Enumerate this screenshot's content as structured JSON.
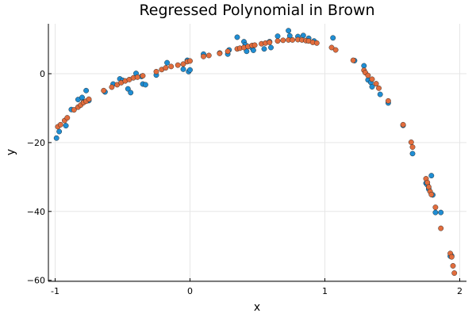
{
  "chart_data": {
    "type": "scatter",
    "title": "Regressed Polynomial in Brown",
    "xlabel": "x",
    "ylabel": "y",
    "xlim": [
      -1.05,
      2.05
    ],
    "ylim": [
      -60.3,
      14.5
    ],
    "xticks": [
      -1,
      0,
      1,
      2
    ],
    "yticks": [
      -60,
      -40,
      -20,
      0
    ],
    "grid": true,
    "legend": "none",
    "colors": {
      "observed": "#1f8ed4",
      "fitted": "#e26d3d"
    },
    "series": [
      {
        "points": [
          [
            -0.99,
            -18.7
          ],
          [
            -0.97,
            -16.8
          ],
          [
            -0.92,
            -15.1
          ],
          [
            -0.88,
            -10.4
          ],
          [
            -0.83,
            -7.5
          ],
          [
            -0.8,
            -6.9
          ],
          [
            -0.79,
            -8.2
          ],
          [
            -0.77,
            -4.9
          ],
          [
            -0.75,
            -7.8
          ],
          [
            -0.63,
            -5.3
          ],
          [
            -0.57,
            -3.0
          ],
          [
            -0.52,
            -1.5
          ],
          [
            -0.5,
            -1.9
          ],
          [
            -0.46,
            -4.4
          ],
          [
            -0.44,
            -5.5
          ],
          [
            -0.4,
            0.1
          ],
          [
            -0.36,
            -0.8
          ],
          [
            -0.35,
            -3.0
          ],
          [
            -0.33,
            -3.2
          ],
          [
            -0.25,
            -0.4
          ],
          [
            -0.17,
            3.2
          ],
          [
            -0.05,
            1.3
          ],
          [
            -0.01,
            0.6
          ],
          [
            -0.02,
            3.9
          ],
          [
            0.0,
            1.1
          ],
          [
            0.1,
            5.7
          ],
          [
            0.22,
            6.0
          ],
          [
            0.28,
            5.7
          ],
          [
            0.29,
            6.9
          ],
          [
            0.35,
            10.6
          ],
          [
            0.4,
            9.3
          ],
          [
            0.41,
            8.4
          ],
          [
            0.42,
            6.5
          ],
          [
            0.46,
            7.5
          ],
          [
            0.47,
            6.8
          ],
          [
            0.55,
            7.2
          ],
          [
            0.59,
            9.3
          ],
          [
            0.6,
            7.6
          ],
          [
            0.65,
            10.9
          ],
          [
            0.73,
            12.5
          ],
          [
            0.74,
            11.0
          ],
          [
            0.8,
            10.8
          ],
          [
            0.84,
            11.1
          ],
          [
            0.88,
            10.3
          ],
          [
            0.92,
            9.5
          ],
          [
            1.06,
            10.4
          ],
          [
            1.22,
            3.8
          ],
          [
            1.29,
            2.3
          ],
          [
            1.32,
            -1.8
          ],
          [
            1.34,
            -2.5
          ],
          [
            1.35,
            -3.8
          ],
          [
            1.41,
            -6.0
          ],
          [
            1.47,
            -8.5
          ],
          [
            1.58,
            -15.0
          ],
          [
            1.65,
            -23.2
          ],
          [
            1.75,
            -31.8
          ],
          [
            1.76,
            -32.3
          ],
          [
            1.77,
            -33.5
          ],
          [
            1.79,
            -29.6
          ],
          [
            1.8,
            -35.2
          ],
          [
            1.82,
            -40.3
          ],
          [
            1.86,
            -40.3
          ],
          [
            1.93,
            -53.0
          ],
          [
            1.94,
            -52.9
          ]
        ]
      },
      {
        "points": [
          [
            -0.98,
            -15.4
          ],
          [
            -0.96,
            -14.8
          ],
          [
            -0.93,
            -13.6
          ],
          [
            -0.91,
            -12.8
          ],
          [
            -0.86,
            -10.5
          ],
          [
            -0.83,
            -9.7
          ],
          [
            -0.81,
            -9.1
          ],
          [
            -0.79,
            -8.4
          ],
          [
            -0.77,
            -8.0
          ],
          [
            -0.75,
            -7.4
          ],
          [
            -0.64,
            -4.9
          ],
          [
            -0.58,
            -3.9
          ],
          [
            -0.54,
            -3.2
          ],
          [
            -0.51,
            -2.6
          ],
          [
            -0.48,
            -2.1
          ],
          [
            -0.45,
            -1.7
          ],
          [
            -0.42,
            -1.2
          ],
          [
            -0.39,
            -1.0
          ],
          [
            -0.35,
            -0.6
          ],
          [
            -0.25,
            0.6
          ],
          [
            -0.21,
            1.2
          ],
          [
            -0.18,
            1.7
          ],
          [
            -0.14,
            2.1
          ],
          [
            -0.09,
            2.5
          ],
          [
            -0.05,
            2.8
          ],
          [
            -0.02,
            3.5
          ],
          [
            0.0,
            3.7
          ],
          [
            0.1,
            5.0
          ],
          [
            0.14,
            5.3
          ],
          [
            0.22,
            5.9
          ],
          [
            0.28,
            6.5
          ],
          [
            0.35,
            7.2
          ],
          [
            0.37,
            7.4
          ],
          [
            0.4,
            7.6
          ],
          [
            0.43,
            7.9
          ],
          [
            0.46,
            8.2
          ],
          [
            0.48,
            8.3
          ],
          [
            0.53,
            8.7
          ],
          [
            0.56,
            8.9
          ],
          [
            0.59,
            9.1
          ],
          [
            0.65,
            9.5
          ],
          [
            0.69,
            9.7
          ],
          [
            0.73,
            9.8
          ],
          [
            0.76,
            9.8
          ],
          [
            0.8,
            9.9
          ],
          [
            0.83,
            9.8
          ],
          [
            0.86,
            9.6
          ],
          [
            0.88,
            9.5
          ],
          [
            0.91,
            9.1
          ],
          [
            0.94,
            8.9
          ],
          [
            1.05,
            7.6
          ],
          [
            1.08,
            6.9
          ],
          [
            1.21,
            3.9
          ],
          [
            1.29,
            1.0
          ],
          [
            1.3,
            0.3
          ],
          [
            1.32,
            -0.5
          ],
          [
            1.35,
            -1.6
          ],
          [
            1.38,
            -2.9
          ],
          [
            1.4,
            -4.2
          ],
          [
            1.47,
            -7.9
          ],
          [
            1.58,
            -14.8
          ],
          [
            1.64,
            -19.9
          ],
          [
            1.65,
            -21.3
          ],
          [
            1.75,
            -30.5
          ],
          [
            1.76,
            -31.6
          ],
          [
            1.77,
            -32.9
          ],
          [
            1.78,
            -34.2
          ],
          [
            1.79,
            -35.1
          ],
          [
            1.82,
            -38.8
          ],
          [
            1.86,
            -44.9
          ],
          [
            1.93,
            -52.2
          ],
          [
            1.94,
            -53.2
          ],
          [
            1.95,
            -55.8
          ],
          [
            1.96,
            -57.9
          ]
        ]
      }
    ]
  }
}
